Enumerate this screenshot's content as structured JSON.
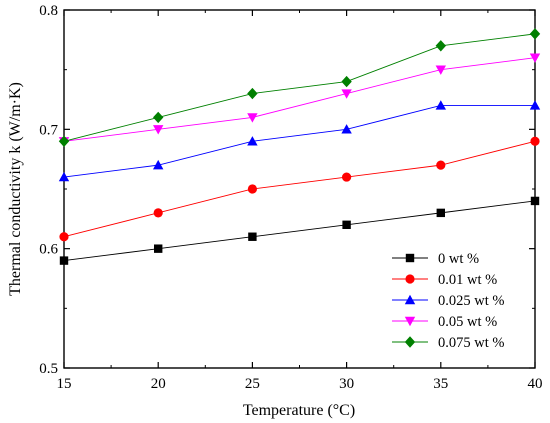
{
  "chart_data": {
    "type": "line",
    "xlabel": "Temperature (°C)",
    "ylabel": "Thermal conductivity k (W/m·K)",
    "xlim": [
      15,
      40
    ],
    "ylim": [
      0.5,
      0.8
    ],
    "xticks": [
      15,
      20,
      25,
      30,
      35,
      40
    ],
    "xtick_labels": [
      "15",
      "20",
      "25",
      "30",
      "35",
      "40"
    ],
    "yticks": [
      0.5,
      0.6,
      0.7,
      0.8
    ],
    "ytick_labels": [
      "0.5",
      "0.6",
      "0.7",
      "0.8"
    ],
    "grid": false,
    "legend_position": "bottom-right",
    "x": [
      15,
      20,
      25,
      30,
      35,
      40
    ],
    "series": [
      {
        "name": "0 wt %",
        "color": "#000000",
        "marker": "square",
        "values": [
          0.59,
          0.6,
          0.61,
          0.62,
          0.63,
          0.64
        ]
      },
      {
        "name": "0.01 wt %",
        "color": "#ff0000",
        "marker": "circle",
        "values": [
          0.61,
          0.63,
          0.65,
          0.66,
          0.67,
          0.69
        ]
      },
      {
        "name": "0.025 wt %",
        "color": "#0000ff",
        "marker": "triangle-up",
        "values": [
          0.66,
          0.67,
          0.69,
          0.7,
          0.72,
          0.72
        ]
      },
      {
        "name": "0.05 wt %",
        "color": "#ff00ff",
        "marker": "triangle-down",
        "values": [
          0.69,
          0.7,
          0.71,
          0.73,
          0.75,
          0.76
        ]
      },
      {
        "name": "0.075 wt %",
        "color": "#008000",
        "marker": "diamond",
        "values": [
          0.69,
          0.71,
          0.73,
          0.74,
          0.77,
          0.78
        ]
      }
    ]
  }
}
